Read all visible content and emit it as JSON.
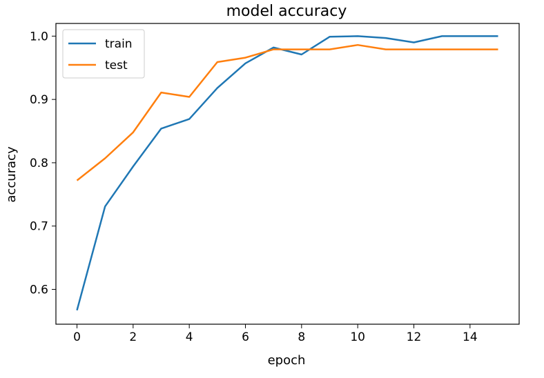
{
  "chart_data": {
    "type": "line",
    "title": "model accuracy",
    "xlabel": "epoch",
    "ylabel": "accuracy",
    "xlim": [
      -0.75,
      15.75
    ],
    "ylim": [
      0.545,
      1.02
    ],
    "xticks": [
      0,
      2,
      4,
      6,
      8,
      10,
      12,
      14
    ],
    "yticks": [
      0.6,
      0.7,
      0.8,
      0.9,
      1.0
    ],
    "ytick_labels": [
      "0.6",
      "0.7",
      "0.8",
      "0.9",
      "1.0"
    ],
    "grid": false,
    "legend_position": "upper left",
    "x": [
      0,
      1,
      2,
      3,
      4,
      5,
      6,
      7,
      8,
      9,
      10,
      11,
      12,
      13,
      14,
      15
    ],
    "series": [
      {
        "name": "train",
        "color": "#1f77b4",
        "values": [
          0.567,
          0.731,
          0.794,
          0.854,
          0.869,
          0.918,
          0.957,
          0.982,
          0.971,
          0.999,
          1.0,
          0.997,
          0.99,
          1.0,
          1.0,
          1.0
        ]
      },
      {
        "name": "test",
        "color": "#ff7f0e",
        "values": [
          0.772,
          0.807,
          0.848,
          0.911,
          0.904,
          0.959,
          0.966,
          0.979,
          0.979,
          0.979,
          0.986,
          0.979,
          0.979,
          0.979,
          0.979,
          0.979
        ]
      }
    ]
  }
}
